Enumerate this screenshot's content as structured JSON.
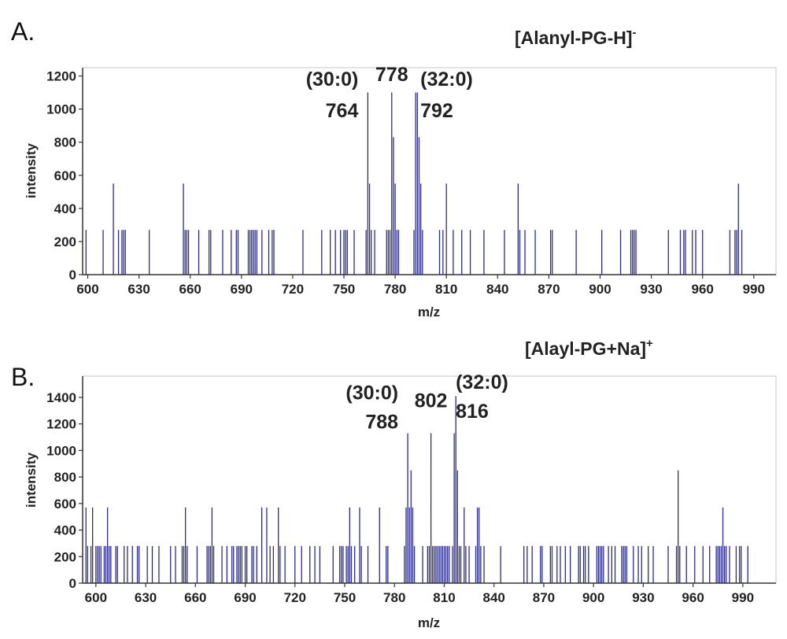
{
  "chart_data": [
    {
      "type": "bar",
      "panel_label": "A.",
      "title": "[Alanyl-PG-H]",
      "title_sup": "-",
      "xlabel": "m/z",
      "ylabel": "intensity",
      "xlim": [
        597,
        1003
      ],
      "ylim": [
        0,
        1250
      ],
      "xticks": [
        600,
        630,
        660,
        690,
        720,
        750,
        780,
        810,
        840,
        870,
        900,
        930,
        960,
        990
      ],
      "yticks": [
        0,
        200,
        400,
        600,
        800,
        1000,
        1200
      ],
      "color": "#2b2b8c",
      "grid": false,
      "annotations": [
        {
          "text": "(30:0)",
          "mz": 764,
          "intensity": 1140
        },
        {
          "text": "764",
          "mz": 764,
          "intensity": 950
        },
        {
          "text": "778",
          "mz": 778,
          "intensity": 1170
        },
        {
          "text": "(32:0)",
          "mz": 792,
          "intensity": 1140
        },
        {
          "text": "792",
          "mz": 792,
          "intensity": 950
        }
      ],
      "peaks": [
        [
          599,
          270
        ],
        [
          609,
          270
        ],
        [
          615,
          550
        ],
        [
          618,
          270
        ],
        [
          620,
          270
        ],
        [
          621,
          270
        ],
        [
          622,
          270
        ],
        [
          636,
          270
        ],
        [
          656,
          550
        ],
        [
          657,
          270
        ],
        [
          658,
          270
        ],
        [
          659,
          270
        ],
        [
          665,
          270
        ],
        [
          671,
          270
        ],
        [
          672,
          270
        ],
        [
          679,
          270
        ],
        [
          684,
          270
        ],
        [
          687,
          270
        ],
        [
          688,
          270
        ],
        [
          694,
          270
        ],
        [
          695,
          270
        ],
        [
          696,
          270
        ],
        [
          697,
          270
        ],
        [
          698,
          270
        ],
        [
          699,
          270
        ],
        [
          702,
          270
        ],
        [
          706,
          270
        ],
        [
          708,
          270
        ],
        [
          709,
          270
        ],
        [
          726,
          270
        ],
        [
          737,
          270
        ],
        [
          742,
          270
        ],
        [
          745,
          270
        ],
        [
          748,
          270
        ],
        [
          750,
          270
        ],
        [
          751,
          270
        ],
        [
          752,
          270
        ],
        [
          756,
          270
        ],
        [
          763,
          270
        ],
        [
          764,
          1100
        ],
        [
          765,
          550
        ],
        [
          766,
          270
        ],
        [
          768,
          270
        ],
        [
          775,
          270
        ],
        [
          776,
          270
        ],
        [
          777,
          270
        ],
        [
          778,
          1100
        ],
        [
          779,
          830
        ],
        [
          780,
          550
        ],
        [
          781,
          270
        ],
        [
          782,
          270
        ],
        [
          791,
          270
        ],
        [
          792,
          1100
        ],
        [
          793,
          1100
        ],
        [
          794,
          830
        ],
        [
          795,
          550
        ],
        [
          796,
          270
        ],
        [
          806,
          270
        ],
        [
          808,
          270
        ],
        [
          810,
          550
        ],
        [
          814,
          270
        ],
        [
          819,
          270
        ],
        [
          824,
          270
        ],
        [
          832,
          270
        ],
        [
          844,
          270
        ],
        [
          852,
          550
        ],
        [
          853,
          270
        ],
        [
          856,
          270
        ],
        [
          862,
          270
        ],
        [
          871,
          270
        ],
        [
          872,
          270
        ],
        [
          886,
          270
        ],
        [
          901,
          270
        ],
        [
          912,
          270
        ],
        [
          918,
          270
        ],
        [
          919,
          270
        ],
        [
          920,
          270
        ],
        [
          921,
          270
        ],
        [
          940,
          270
        ],
        [
          947,
          270
        ],
        [
          949,
          270
        ],
        [
          950,
          270
        ],
        [
          954,
          270
        ],
        [
          956,
          270
        ],
        [
          960,
          270
        ],
        [
          976,
          270
        ],
        [
          979,
          270
        ],
        [
          980,
          270
        ],
        [
          981,
          550
        ],
        [
          983,
          270
        ]
      ]
    },
    {
      "type": "bar",
      "panel_label": "B.",
      "title": "[Alayl-PG+Na]",
      "title_sup": "+",
      "xlabel": "m/z",
      "ylabel": "intensity",
      "xlim": [
        592,
        1010
      ],
      "ylim": [
        0,
        1560
      ],
      "xticks": [
        600,
        630,
        660,
        690,
        720,
        750,
        780,
        810,
        840,
        870,
        900,
        930,
        960,
        990
      ],
      "yticks": [
        0,
        200,
        400,
        600,
        800,
        1000,
        1200,
        1400
      ],
      "color": "#2b2b8c",
      "grid": false,
      "annotations": [
        {
          "text": "(30:0)",
          "mz": 788,
          "intensity": 1385
        },
        {
          "text": "788",
          "mz": 788,
          "intensity": 1165
        },
        {
          "text": "802",
          "mz": 802,
          "intensity": 1325
        },
        {
          "text": "(32:0)",
          "mz": 816,
          "intensity": 1465
        },
        {
          "text": "816",
          "mz": 816,
          "intensity": 1245
        }
      ],
      "peaks": [
        [
          594,
          570
        ],
        [
          595,
          280
        ],
        [
          597,
          280
        ],
        [
          598,
          570
        ],
        [
          600,
          280
        ],
        [
          601,
          280
        ],
        [
          602,
          280
        ],
        [
          603,
          280
        ],
        [
          605,
          280
        ],
        [
          606,
          280
        ],
        [
          607,
          570
        ],
        [
          608,
          280
        ],
        [
          609,
          280
        ],
        [
          612,
          280
        ],
        [
          613,
          280
        ],
        [
          617,
          280
        ],
        [
          619,
          280
        ],
        [
          622,
          280
        ],
        [
          625,
          280
        ],
        [
          626,
          280
        ],
        [
          631,
          280
        ],
        [
          634,
          280
        ],
        [
          638,
          280
        ],
        [
          645,
          280
        ],
        [
          648,
          280
        ],
        [
          652,
          280
        ],
        [
          653,
          280
        ],
        [
          654,
          570
        ],
        [
          655,
          280
        ],
        [
          661,
          280
        ],
        [
          667,
          280
        ],
        [
          668,
          280
        ],
        [
          669,
          280
        ],
        [
          670,
          570
        ],
        [
          671,
          280
        ],
        [
          676,
          280
        ],
        [
          679,
          280
        ],
        [
          682,
          280
        ],
        [
          683,
          280
        ],
        [
          685,
          280
        ],
        [
          686,
          280
        ],
        [
          687,
          280
        ],
        [
          688,
          280
        ],
        [
          690,
          280
        ],
        [
          691,
          280
        ],
        [
          694,
          280
        ],
        [
          695,
          280
        ],
        [
          697,
          280
        ],
        [
          700,
          570
        ],
        [
          703,
          570
        ],
        [
          705,
          280
        ],
        [
          707,
          280
        ],
        [
          710,
          570
        ],
        [
          711,
          280
        ],
        [
          714,
          280
        ],
        [
          720,
          280
        ],
        [
          724,
          280
        ],
        [
          729,
          280
        ],
        [
          732,
          280
        ],
        [
          735,
          280
        ],
        [
          743,
          280
        ],
        [
          747,
          280
        ],
        [
          748,
          280
        ],
        [
          749,
          280
        ],
        [
          751,
          280
        ],
        [
          752,
          280
        ],
        [
          753,
          570
        ],
        [
          754,
          280
        ],
        [
          756,
          280
        ],
        [
          759,
          570
        ],
        [
          760,
          280
        ],
        [
          764,
          280
        ],
        [
          771,
          570
        ],
        [
          775,
          280
        ],
        [
          776,
          280
        ],
        [
          786,
          280
        ],
        [
          787,
          570
        ],
        [
          788,
          1130
        ],
        [
          789,
          570
        ],
        [
          790,
          850
        ],
        [
          791,
          570
        ],
        [
          792,
          280
        ],
        [
          797,
          280
        ],
        [
          800,
          280
        ],
        [
          801,
          280
        ],
        [
          802,
          1130
        ],
        [
          803,
          280
        ],
        [
          804,
          280
        ],
        [
          805,
          280
        ],
        [
          806,
          280
        ],
        [
          807,
          280
        ],
        [
          808,
          280
        ],
        [
          809,
          280
        ],
        [
          810,
          280
        ],
        [
          811,
          280
        ],
        [
          812,
          280
        ],
        [
          813,
          280
        ],
        [
          815,
          280
        ],
        [
          816,
          1130
        ],
        [
          817,
          1410
        ],
        [
          818,
          850
        ],
        [
          819,
          280
        ],
        [
          820,
          280
        ],
        [
          822,
          570
        ],
        [
          823,
          280
        ],
        [
          825,
          280
        ],
        [
          829,
          280
        ],
        [
          830,
          570
        ],
        [
          831,
          570
        ],
        [
          832,
          280
        ],
        [
          834,
          280
        ],
        [
          844,
          280
        ],
        [
          858,
          280
        ],
        [
          860,
          280
        ],
        [
          863,
          280
        ],
        [
          868,
          280
        ],
        [
          869,
          280
        ],
        [
          874,
          280
        ],
        [
          875,
          280
        ],
        [
          878,
          280
        ],
        [
          880,
          280
        ],
        [
          883,
          280
        ],
        [
          886,
          280
        ],
        [
          891,
          280
        ],
        [
          892,
          280
        ],
        [
          894,
          280
        ],
        [
          895,
          280
        ],
        [
          897,
          280
        ],
        [
          902,
          280
        ],
        [
          903,
          280
        ],
        [
          904,
          280
        ],
        [
          905,
          280
        ],
        [
          906,
          280
        ],
        [
          909,
          280
        ],
        [
          911,
          280
        ],
        [
          913,
          280
        ],
        [
          917,
          280
        ],
        [
          918,
          280
        ],
        [
          919,
          280
        ],
        [
          920,
          280
        ],
        [
          924,
          280
        ],
        [
          927,
          280
        ],
        [
          929,
          280
        ],
        [
          933,
          280
        ],
        [
          936,
          280
        ],
        [
          945,
          280
        ],
        [
          950,
          280
        ],
        [
          951,
          850
        ],
        [
          952,
          280
        ],
        [
          956,
          280
        ],
        [
          961,
          280
        ],
        [
          966,
          280
        ],
        [
          970,
          280
        ],
        [
          974,
          280
        ],
        [
          975,
          280
        ],
        [
          976,
          280
        ],
        [
          977,
          280
        ],
        [
          978,
          570
        ],
        [
          979,
          280
        ],
        [
          980,
          280
        ],
        [
          982,
          280
        ],
        [
          986,
          280
        ],
        [
          988,
          280
        ],
        [
          989,
          280
        ],
        [
          993,
          280
        ]
      ]
    }
  ]
}
